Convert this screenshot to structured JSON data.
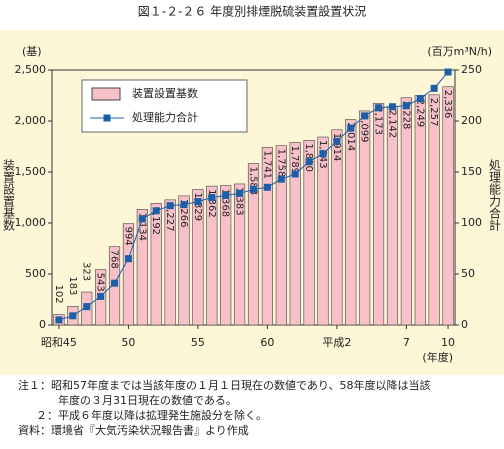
{
  "chart_data": {
    "type": "bar-line",
    "title": "図１-２-２６ 年度別排煙脱硫装置設置状況",
    "y_label": "(基)",
    "y2_label": "(百万m³N/h)",
    "y_axis_title": "装置設置基数",
    "y2_axis_title": "処理能力合計",
    "x_unit": "(年度)",
    "categories": [
      "昭和45",
      null,
      null,
      null,
      null,
      "50",
      null,
      null,
      null,
      null,
      "55",
      null,
      null,
      null,
      null,
      "60",
      null,
      null,
      null,
      null,
      "平成2",
      null,
      null,
      null,
      null,
      "7",
      null,
      null,
      "10"
    ],
    "series": [
      {
        "name": "装置設置基数",
        "type": "bar",
        "color": "#f8c0c8",
        "values": [
          102,
          183,
          323,
          543,
          768,
          994,
          1134,
          1192,
          1227,
          1266,
          1329,
          1362,
          1368,
          1383,
          1583,
          1741,
          1758,
          1789,
          1810,
          1843,
          1914,
          2014,
          2099,
          2173,
          2142,
          2228,
          2249,
          2257,
          2336
        ],
        "value_labels": [
          "102",
          "183",
          "323",
          "543",
          "768",
          "994",
          "1,134",
          "1,192",
          "1,227",
          "1,266",
          "1,329",
          "1,362",
          "1,368",
          "1,383",
          "1,583",
          "1,741",
          "1,758",
          "1,789",
          "1,810",
          "1,843",
          "1,914",
          "2,014",
          "2,099",
          "2,173",
          "2,142",
          "2,228",
          "2,249",
          "2,257",
          "2,336"
        ]
      },
      {
        "name": "処理能力合計",
        "type": "line",
        "axis": "y2",
        "color": "#1a5fa8",
        "values": [
          5,
          9,
          18,
          28,
          41,
          65,
          104,
          112,
          117,
          118,
          121,
          125,
          127,
          129,
          133,
          135,
          143,
          148,
          160,
          168,
          180,
          193,
          205,
          213,
          214,
          215,
          222,
          232,
          248
        ]
      }
    ],
    "ylim": [
      0,
      2500
    ],
    "yticks": [
      0,
      500,
      {
        "value": 1000,
        "label": "1,000"
      },
      {
        "value": 1500,
        "label": "1,500"
      },
      {
        "value": 2000,
        "label": "2,000"
      },
      {
        "value": 2500,
        "label": "2,500"
      }
    ],
    "y2lim": [
      0,
      250
    ],
    "y2ticks": [
      0,
      50,
      100,
      150,
      200,
      250
    ]
  },
  "notes": [
    "注１：昭和57年度までは当該年度の１月１日現在の数値であり、58年度以降は当該",
    "年度の３月31日現在の数値である。",
    "２：平成６年度以降は拡理発生施設分を除く。",
    "資料：環境省『大気汚染状況報告書』より作成"
  ]
}
